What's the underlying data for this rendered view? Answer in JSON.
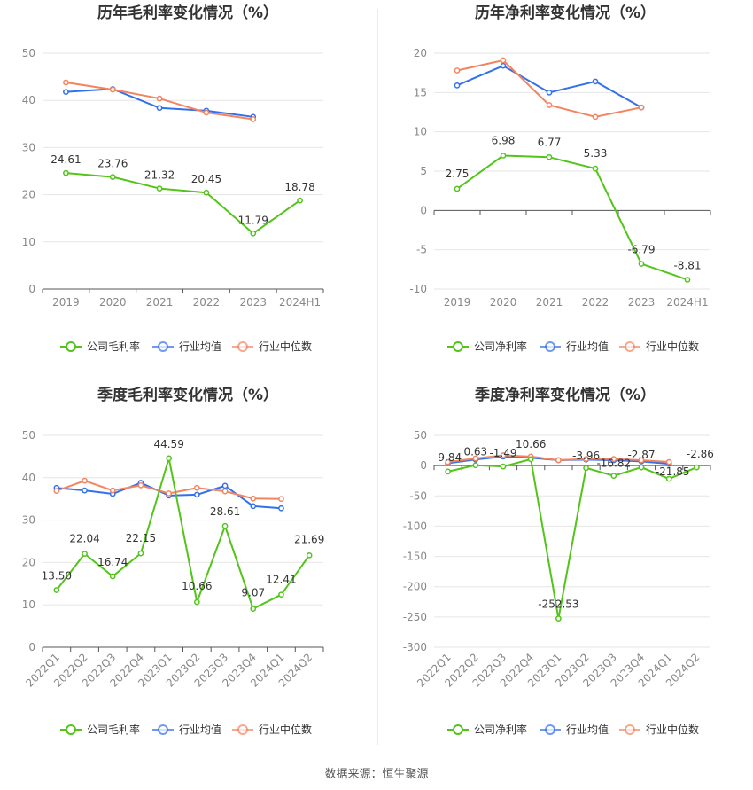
{
  "source": "数据来源：恒生聚源",
  "colors": {
    "company": "#52c41a",
    "industry_avg": "#3370eb",
    "industry_median": "#f4845f",
    "grid": "#e6e6e6",
    "axis_text": "#888888",
    "label_text": "#333333"
  },
  "chart_data": [
    {
      "type": "line",
      "title": "历年毛利率变化情况（%）",
      "categories": [
        "2019",
        "2020",
        "2021",
        "2022",
        "2023",
        "2024H1"
      ],
      "yticks": [
        "0",
        "10",
        "20",
        "30",
        "40",
        "50"
      ],
      "ylim": [
        0,
        50
      ],
      "grid": true,
      "legend_position": "bottom",
      "series": [
        {
          "name": "公司毛利率",
          "role": "company",
          "values": [
            24.61,
            23.76,
            21.32,
            20.45,
            11.79,
            18.78
          ],
          "labels": [
            "24.61",
            "23.76",
            "21.32",
            "20.45",
            "11.79",
            "18.78"
          ]
        },
        {
          "name": "行业均值",
          "role": "industry_avg",
          "values": [
            41.8,
            42.4,
            38.4,
            37.8,
            36.5,
            null
          ]
        },
        {
          "name": "行业中位数",
          "role": "industry_median",
          "values": [
            43.8,
            42.3,
            40.4,
            37.4,
            36.0,
            null
          ]
        }
      ]
    },
    {
      "type": "line",
      "title": "历年净利率变化情况（%）",
      "categories": [
        "2019",
        "2020",
        "2021",
        "2022",
        "2023",
        "2024H1"
      ],
      "yticks": [
        "-10",
        "-5",
        "0",
        "5",
        "10",
        "15",
        "20"
      ],
      "ylim": [
        -10,
        20
      ],
      "grid": true,
      "legend_position": "bottom",
      "series": [
        {
          "name": "公司净利率",
          "role": "company",
          "values": [
            2.75,
            6.98,
            6.77,
            5.33,
            -6.79,
            -8.81
          ],
          "labels": [
            "2.75",
            "6.98",
            "6.77",
            "5.33",
            "-6.79",
            "-8.81"
          ]
        },
        {
          "name": "行业均值",
          "role": "industry_avg",
          "values": [
            15.9,
            18.4,
            15.0,
            16.4,
            13.1,
            null
          ]
        },
        {
          "name": "行业中位数",
          "role": "industry_median",
          "values": [
            17.8,
            19.1,
            13.4,
            11.9,
            13.1,
            null
          ]
        }
      ]
    },
    {
      "type": "line",
      "title": "季度毛利率变化情况（%）",
      "categories": [
        "2022Q1",
        "2022Q2",
        "2022Q3",
        "2022Q4",
        "2023Q1",
        "2023Q2",
        "2023Q3",
        "2023Q4",
        "2024Q1",
        "2024Q2"
      ],
      "yticks": [
        "0",
        "10",
        "20",
        "30",
        "40",
        "50"
      ],
      "ylim": [
        0,
        50
      ],
      "grid": true,
      "legend_position": "bottom",
      "series": [
        {
          "name": "公司毛利率",
          "role": "company",
          "values": [
            13.5,
            22.04,
            16.74,
            22.15,
            44.59,
            10.66,
            28.61,
            9.07,
            12.41,
            21.69
          ],
          "labels": [
            "13.50",
            "22.04",
            "16.74",
            "22.15",
            "44.59",
            "10.66",
            "28.61",
            "9.07",
            "12.41",
            "21.69"
          ]
        },
        {
          "name": "行业均值",
          "role": "industry_avg",
          "values": [
            37.6,
            37.0,
            36.2,
            38.8,
            35.8,
            36.0,
            38.1,
            33.3,
            32.8,
            null
          ]
        },
        {
          "name": "行业中位数",
          "role": "industry_median",
          "values": [
            36.9,
            39.3,
            37.0,
            38.2,
            36.3,
            37.6,
            36.8,
            35.1,
            35.0,
            null
          ]
        }
      ]
    },
    {
      "type": "line",
      "title": "季度净利率变化情况（%）",
      "categories": [
        "2022Q1",
        "2022Q2",
        "2022Q3",
        "2022Q4",
        "2023Q1",
        "2023Q2",
        "2023Q3",
        "2023Q4",
        "2024Q1",
        "2024Q2"
      ],
      "yticks": [
        "-300",
        "-250",
        "-200",
        "-150",
        "-100",
        "-50",
        "0",
        "50"
      ],
      "ylim": [
        -300,
        50
      ],
      "grid": true,
      "legend_position": "bottom",
      "series": [
        {
          "name": "公司净利率",
          "role": "company",
          "values": [
            -9.84,
            0.63,
            -1.49,
            10.66,
            -252.53,
            -3.96,
            -16.82,
            -2.87,
            -21.85,
            -2.86
          ],
          "labels": [
            "-9.84",
            "0.63",
            "-1.49",
            "10.66",
            "-252.53",
            "-3.96",
            "-16.82",
            "-2.87",
            "-21.85",
            "-2.86"
          ]
        },
        {
          "name": "行业均值",
          "role": "industry_avg",
          "values": [
            4.0,
            10.0,
            15.0,
            13.0,
            9.0,
            10.0,
            9.0,
            7.0,
            3.0,
            null
          ]
        },
        {
          "name": "行业中位数",
          "role": "industry_median",
          "values": [
            6.0,
            12.0,
            17.0,
            15.0,
            9.0,
            11.0,
            11.0,
            9.0,
            6.0,
            null
          ]
        }
      ]
    }
  ]
}
